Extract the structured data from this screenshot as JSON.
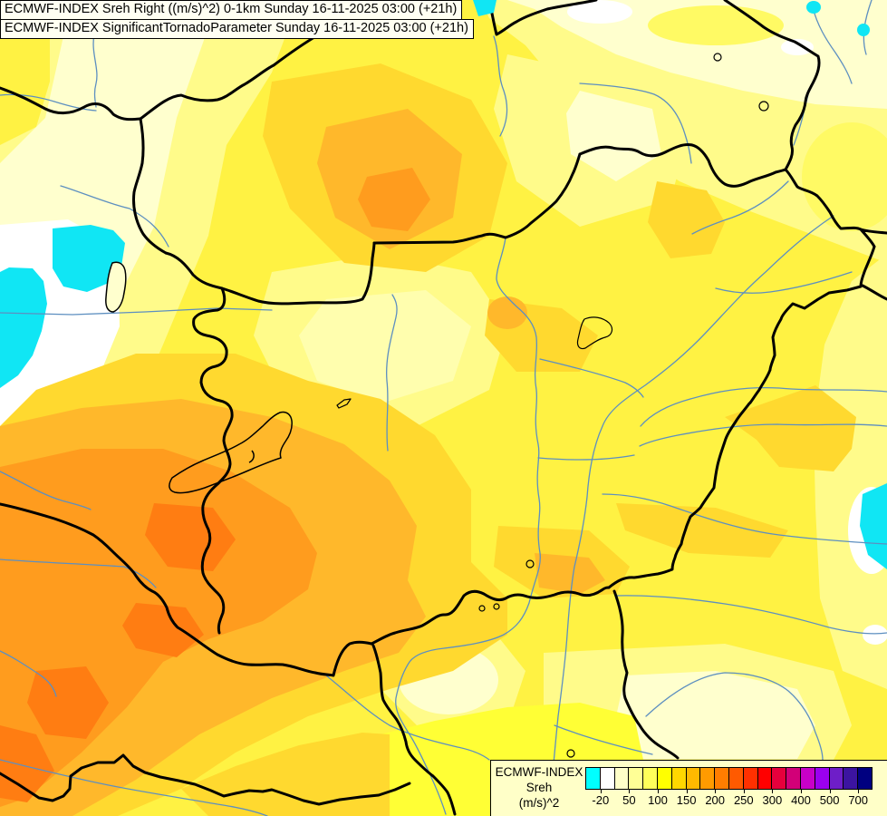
{
  "titles": {
    "line1": "ECMWF-INDEX Sreh Right ((m/s)^2) 0-1km Sunday 16-11-2025 03:00 (+21h)",
    "line2": "ECMWF-INDEX SignificantTornadoParameter Sunday 16-11-2025 03:00 (+21h)"
  },
  "legend": {
    "product": "ECMWF-INDEX",
    "parameter": "Sreh",
    "units": "(m/s)^2",
    "tick_labels": [
      "-20",
      "50",
      "100",
      "150",
      "200",
      "250",
      "300",
      "400",
      "500",
      "700"
    ],
    "cell_colors": [
      "#00FFFF",
      "#FFFFFF",
      "#FFFFC8",
      "#FFFF96",
      "#FFFF5A",
      "#FFFF00",
      "#FFD700",
      "#FFB900",
      "#FF9B00",
      "#FF7D00",
      "#FF5A00",
      "#FF3000",
      "#FF0000",
      "#E6003C",
      "#D20078",
      "#C800C8",
      "#9B00F0",
      "#6E1EC8",
      "#3C14A0",
      "#000080"
    ]
  },
  "palette": {
    "base": "#FFF243",
    "pale": "#FFFB8A",
    "cream": "#FFFFCE",
    "white": "#FFFFFF",
    "cyan": "#10E6F4",
    "bright": "#FFFF35",
    "lightyellow": "#FFFA64",
    "gold": "#FFD92F",
    "amber": "#FFB82B",
    "orange": "#FF9C1E",
    "deep": "#FF7D12",
    "river": "#5D8FC0",
    "border": "#000000",
    "legend_bg": "#FFFFC8",
    "title_bg": "#FFFFF2"
  }
}
